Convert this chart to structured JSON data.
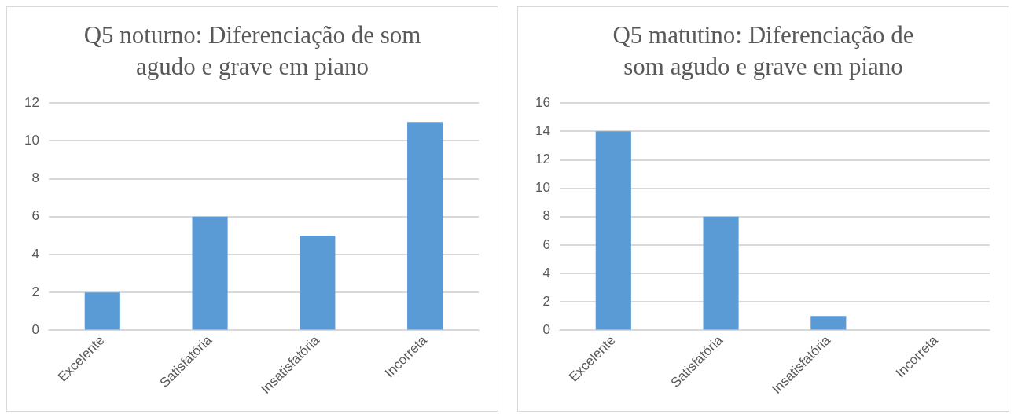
{
  "chart_data": [
    {
      "type": "bar",
      "title": "Q5 noturno: Diferenciação de som agudo e grave em piano",
      "categories": [
        "Excelente",
        "Satisfatória",
        "Insatisfatória",
        "Incorreta"
      ],
      "values": [
        2,
        6,
        5,
        11
      ],
      "color": "#5b9bd5",
      "ylim": [
        0,
        12
      ],
      "yticks": [
        0,
        2,
        4,
        6,
        8,
        10,
        12
      ],
      "grid": "y"
    },
    {
      "type": "bar",
      "title": "Q5 matutino: Diferenciação de som agudo e grave em piano",
      "categories": [
        "Excelente",
        "Satisfatória",
        "Insatisfatória",
        "Incorreta"
      ],
      "values": [
        14,
        8,
        1,
        0
      ],
      "color": "#5b9bd5",
      "ylim": [
        0,
        16
      ],
      "yticks": [
        0,
        2,
        4,
        6,
        8,
        10,
        12,
        14,
        16
      ],
      "grid": "y"
    }
  ]
}
